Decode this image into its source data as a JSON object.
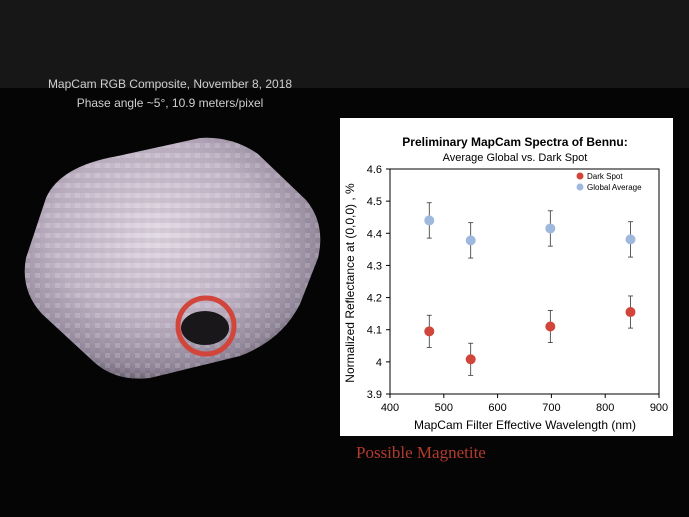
{
  "image_caption": {
    "line1": "MapCam RGB Composite, November 8, 2018",
    "line2": "Phase angle ~5°, 10.9 meters/pixel"
  },
  "annotation": {
    "label": "Possible Magnetite",
    "color": "#b23b2e",
    "marker_color": "#d2453a"
  },
  "chart_data": {
    "type": "scatter",
    "title": "Preliminary MapCam Spectra of Bennu:",
    "subtitle": "Average Global vs. Dark Spot",
    "xlabel": "MapCam Filter Effective Wavelength (nm)",
    "ylabel": "Normalized Reflectance at (0,0,0) , %",
    "xlim": [
      400,
      900
    ],
    "ylim": [
      3.9,
      4.6
    ],
    "xticks": [
      "400",
      "500",
      "600",
      "700",
      "800",
      "900"
    ],
    "yticks": [
      "3.9",
      "4",
      "4.1",
      "4.2",
      "4.3",
      "4.4",
      "4.5",
      "4.6"
    ],
    "grid": false,
    "legend_position": "top-right",
    "series": [
      {
        "name": "Dark Spot",
        "color": "#d2453a",
        "x": [
          473,
          550,
          698,
          847
        ],
        "y": [
          4.095,
          4.008,
          4.11,
          4.155
        ],
        "error": [
          0.05,
          0.05,
          0.05,
          0.05
        ]
      },
      {
        "name": "Global Average",
        "color": "#9fb8de",
        "x": [
          473,
          550,
          698,
          847
        ],
        "y": [
          4.44,
          4.378,
          4.415,
          4.381
        ],
        "error": [
          0.055,
          0.055,
          0.055,
          0.055
        ]
      }
    ]
  }
}
